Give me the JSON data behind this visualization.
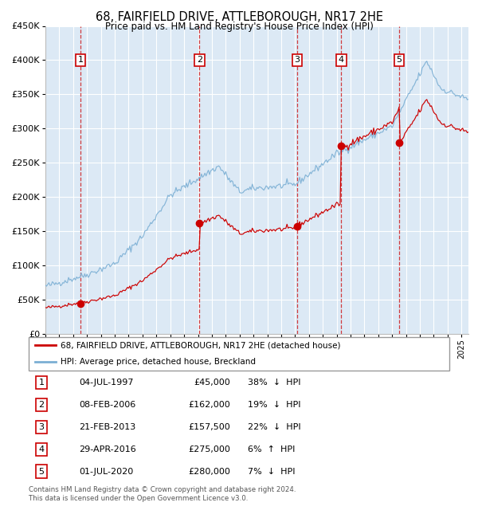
{
  "title_line1": "68, FAIRFIELD DRIVE, ATTLEBOROUGH, NR17 2HE",
  "title_line2": "Price paid vs. HM Land Registry's House Price Index (HPI)",
  "legend_red": "68, FAIRFIELD DRIVE, ATTLEBOROUGH, NR17 2HE (detached house)",
  "legend_blue": "HPI: Average price, detached house, Breckland",
  "footer1": "Contains HM Land Registry data © Crown copyright and database right 2024.",
  "footer2": "This data is licensed under the Open Government Licence v3.0.",
  "transactions": [
    {
      "num": 1,
      "date": "04-JUL-1997",
      "price": 45000,
      "pct": "38%",
      "dir": "↓",
      "year": 1997.54
    },
    {
      "num": 2,
      "date": "08-FEB-2006",
      "price": 162000,
      "pct": "19%",
      "dir": "↓",
      "year": 2006.11
    },
    {
      "num": 3,
      "date": "21-FEB-2013",
      "price": 157500,
      "pct": "22%",
      "dir": "↓",
      "year": 2013.14
    },
    {
      "num": 4,
      "date": "29-APR-2016",
      "price": 275000,
      "pct": "6%",
      "dir": "↑",
      "year": 2016.33
    },
    {
      "num": 5,
      "date": "01-JUL-2020",
      "price": 280000,
      "pct": "7%",
      "dir": "↓",
      "year": 2020.5
    }
  ],
  "ylim": [
    0,
    450000
  ],
  "xlim_start": 1995.0,
  "xlim_end": 2025.5,
  "background_color": "#dce9f5",
  "red_color": "#cc0000",
  "blue_color": "#7bafd4",
  "grid_color": "#ffffff"
}
